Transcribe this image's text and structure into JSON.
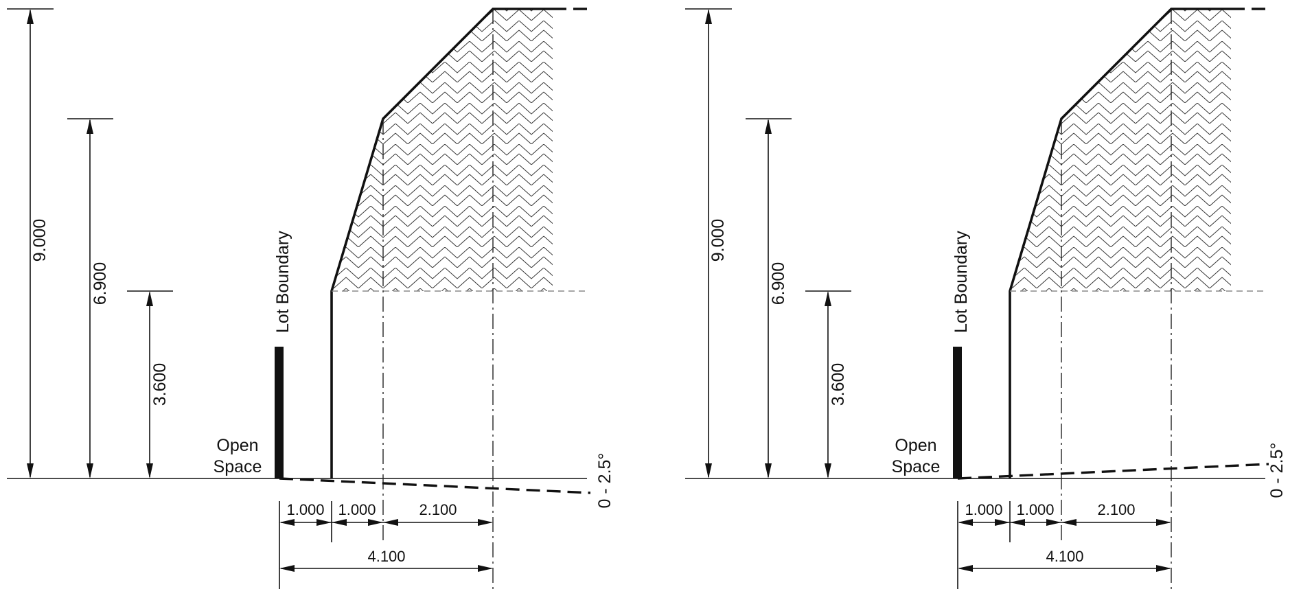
{
  "panels": [
    {
      "heights": [
        "9.000",
        "6.900",
        "3.600"
      ],
      "boundary_label": "Lot Boundary",
      "open_space_label": [
        "Open",
        "Space"
      ],
      "setbacks": [
        "1.000",
        "1.000",
        "2.100"
      ],
      "total_setback": "4.100",
      "slope_label": "0 - 2.5°",
      "slope_direction": "down"
    },
    {
      "heights": [
        "9.000",
        "6.900",
        "3.600"
      ],
      "boundary_label": "Lot Boundary",
      "open_space_label": [
        "Open",
        "Space"
      ],
      "setbacks": [
        "1.000",
        "1.000",
        "2.100"
      ],
      "total_setback": "4.100",
      "slope_label": "0 - 2.5°",
      "slope_direction": "up"
    }
  ]
}
